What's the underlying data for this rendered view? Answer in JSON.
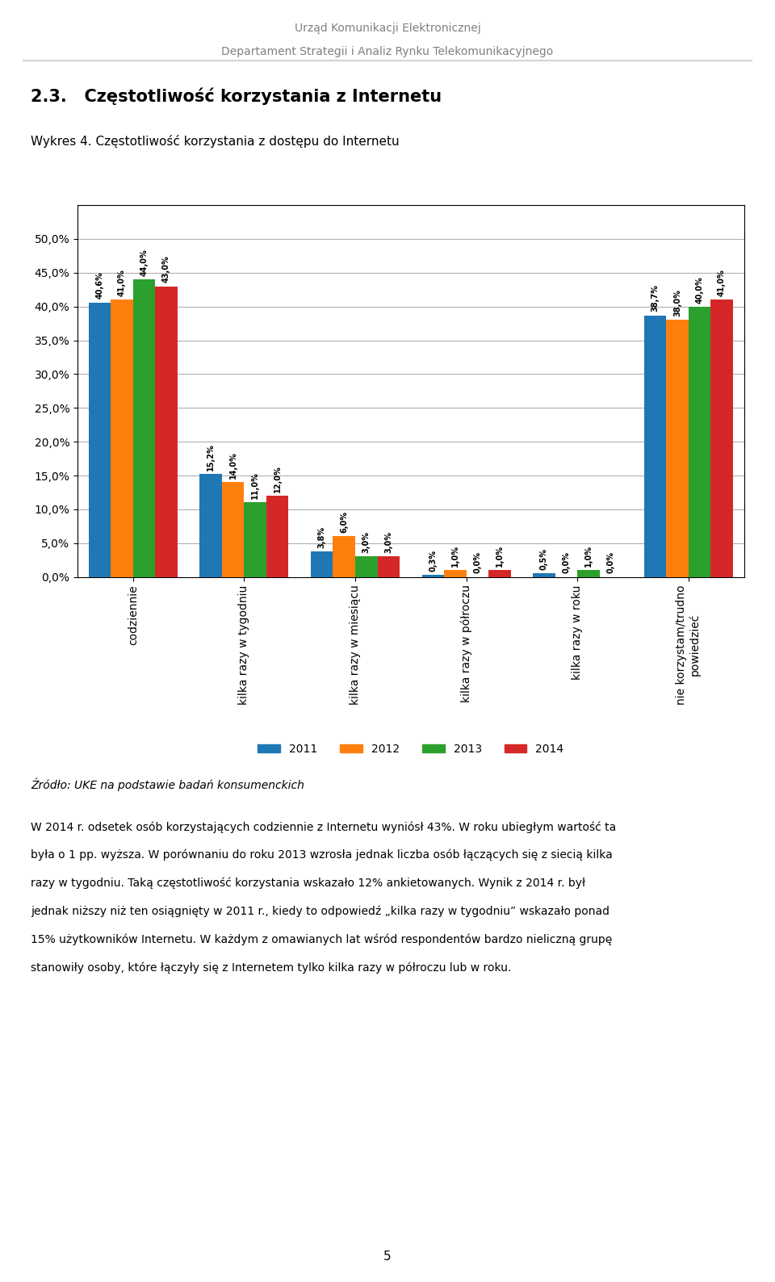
{
  "chart_data": {
    "type": "bar",
    "title": "Wykres 4. Częstotliwość korzystania z dostępu do Internetu",
    "categories": [
      "codziennie",
      "kilka razy w tygodniu",
      "kilka razy w miesiącu",
      "kilka razy w półroczu",
      "kilka razy w roku",
      "nie korzystam/trudno\npowiedzieć"
    ],
    "series": [
      {
        "name": "2011",
        "values": [
          40.6,
          15.2,
          3.8,
          0.3,
          0.5,
          38.7
        ],
        "value_labels": [
          "40,6%",
          "15,2%",
          "3,8%",
          "0,3%",
          "0,5%",
          "38,7%"
        ]
      },
      {
        "name": "2012",
        "values": [
          41.0,
          14.0,
          6.0,
          1.0,
          0.0,
          38.0
        ],
        "value_labels": [
          "41,0%",
          "14,0%",
          "6,0%",
          "1,0%",
          "0,0%",
          "38,0%"
        ]
      },
      {
        "name": "2013",
        "values": [
          44.0,
          11.0,
          3.0,
          0.0,
          1.0,
          40.0
        ],
        "value_labels": [
          "44,0%",
          "11,0%",
          "3,0%",
          "0,0%",
          "1,0%",
          "40,0%"
        ]
      },
      {
        "name": "2014",
        "values": [
          43.0,
          12.0,
          3.0,
          1.0,
          0.0,
          41.0
        ],
        "value_labels": [
          "43,0%",
          "12,0%",
          "3,0%",
          "1,0%",
          "0,0%",
          "41,0%"
        ]
      }
    ],
    "ylim": [
      0,
      55
    ],
    "yticks": [
      {
        "value": 0.0,
        "label": "0,0%"
      },
      {
        "value": 5.0,
        "label": "5,0%"
      },
      {
        "value": 10.0,
        "label": "10,0%"
      },
      {
        "value": 15.0,
        "label": "15,0%"
      },
      {
        "value": 20.0,
        "label": "20,0%"
      },
      {
        "value": 25.0,
        "label": "25,0%"
      },
      {
        "value": 30.0,
        "label": "30,0%"
      },
      {
        "value": 35.0,
        "label": "35,0%"
      },
      {
        "value": 40.0,
        "label": "40,0%"
      },
      {
        "value": 45.0,
        "label": "45,0%"
      },
      {
        "value": 50.0,
        "label": "50,0%"
      }
    ],
    "grid": true,
    "legend": "upper center",
    "data_labels": true
  },
  "page": {
    "header": [
      "Urząd Komunikacji Elektronicznej",
      "Departament Strategii i Analiz Rynku Telekomunikacyjnego"
    ],
    "section_title": "2.3.   Częstotliwość korzystania z Internetu",
    "source": "Źródło: UKE na podstawie badań konsumenckich",
    "body": [
      "W 2014 r. odsetek osób korzystających codziennie z Internetu wyniósł 43%. W roku ubiegłym wartość ta",
      "była o 1 pp. wyższa. W porównaniu do roku 2013 wzrosła jednak liczba osób łączących się z siecią kilka",
      "razy w tygodniu. Taką częstotliwość korzystania wskazało 12% ankietowanych. Wynik z 2014 r. był",
      "jednak niższy niż ten osiągnięty w 2011 r., kiedy to odpowiedź „kilka razy w tygodniu” wskazało ponad",
      "15% użytkowników Internetu. W każdym z omawianych lat wśród respondentów bardzo nieliczną grupę",
      "stanowiły osoby, które łączyły się z Internetem tylko kilka razy w półroczu lub w roku."
    ],
    "page_number": "5"
  }
}
